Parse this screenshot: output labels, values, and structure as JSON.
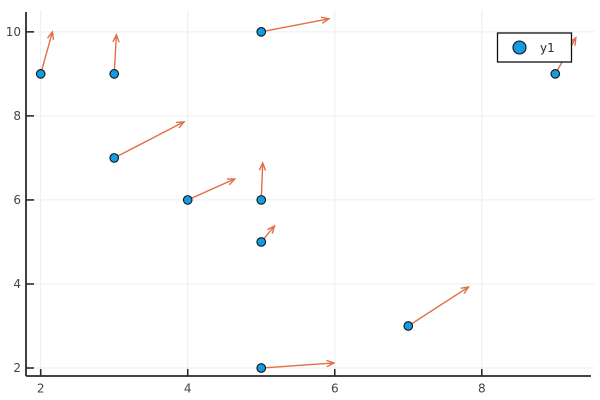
{
  "figure": {
    "background": "#FFFFFF"
  },
  "chart_data": {
    "type": "scatter",
    "subtype": "quiver",
    "title": "",
    "xlabel": "",
    "ylabel": "",
    "grid": true,
    "xticks": [
      2,
      4,
      6,
      8
    ],
    "yticks": [
      2,
      4,
      6,
      8,
      10
    ],
    "xlim": [
      1.8,
      9.54
    ],
    "ylim": [
      1.81,
      10.52
    ],
    "legend": {
      "label": "y1",
      "position": "top-right"
    },
    "series": [
      {
        "name": "y1",
        "points": [
          {
            "x": 2,
            "y": 9
          },
          {
            "x": 3,
            "y": 9
          },
          {
            "x": 3,
            "y": 7
          },
          {
            "x": 4,
            "y": 6
          },
          {
            "x": 5,
            "y": 10
          },
          {
            "x": 5,
            "y": 6
          },
          {
            "x": 5,
            "y": 5
          },
          {
            "x": 5,
            "y": 2
          },
          {
            "x": 7,
            "y": 3
          },
          {
            "x": 9,
            "y": 9
          }
        ]
      }
    ],
    "quiver_arrows": [
      {
        "x": 2,
        "y": 9,
        "dx": 0.16,
        "dy": 1.0
      },
      {
        "x": 3,
        "y": 9,
        "dx": 0.03,
        "dy": 0.93
      },
      {
        "x": 3,
        "y": 7,
        "dx": 0.95,
        "dy": 0.86
      },
      {
        "x": 4,
        "y": 6,
        "dx": 0.64,
        "dy": 0.5
      },
      {
        "x": 5,
        "y": 10,
        "dx": 0.92,
        "dy": 0.31
      },
      {
        "x": 5,
        "y": 6,
        "dx": 0.02,
        "dy": 0.88
      },
      {
        "x": 5,
        "y": 5,
        "dx": 0.18,
        "dy": 0.38
      },
      {
        "x": 5,
        "y": 2,
        "dx": 0.99,
        "dy": 0.12
      },
      {
        "x": 7,
        "y": 3,
        "dx": 0.82,
        "dy": 0.93
      },
      {
        "x": 9,
        "y": 9,
        "dx": 0.28,
        "dy": 0.86
      }
    ],
    "colors": {
      "marker_fill": "#149BE1",
      "marker_stroke": "#0B1215",
      "arrow": "#E26F46",
      "grid": "#EDEDED",
      "axis": "#2A2A2A",
      "tick_label": "#454545",
      "legend_border": "#111111",
      "legend_bg": "#FFFFFF",
      "legend_text": "#2B2B2B"
    }
  }
}
